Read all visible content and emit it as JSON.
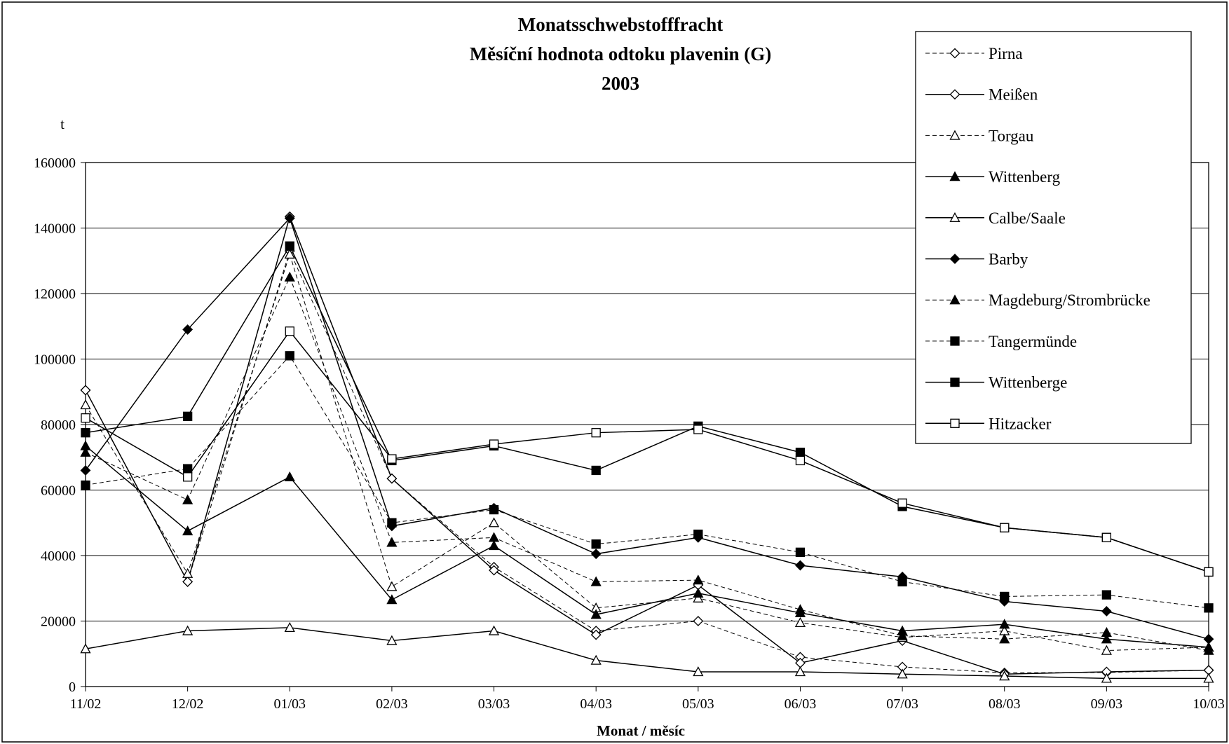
{
  "chart_data": {
    "type": "line",
    "title_lines": [
      "Monatsschwebstofffracht",
      "Měsíční hodnota odtoku plavenin (G)",
      "2003"
    ],
    "ylabel": "t",
    "xlabel": "Monat / měsíc",
    "categories": [
      "11/02",
      "12/02",
      "01/03",
      "02/03",
      "03/03",
      "04/03",
      "05/03",
      "06/03",
      "07/03",
      "08/03",
      "09/03",
      "10/03"
    ],
    "ylim": [
      0,
      160000
    ],
    "yticks": [
      0,
      20000,
      40000,
      60000,
      80000,
      100000,
      120000,
      140000,
      160000
    ],
    "grid": true,
    "legend_position": "top-right",
    "series": [
      {
        "name": "Pirna",
        "dashed": true,
        "marker": "diamond",
        "filled": false,
        "values": [
          90500,
          32000,
          133000,
          63500,
          36500,
          17000,
          20000,
          9000,
          6000,
          4200,
          4300,
          5000
        ]
      },
      {
        "name": "Meißen",
        "dashed": false,
        "marker": "diamond",
        "filled": false,
        "values": [
          90500,
          32000,
          143500,
          63500,
          35500,
          15800,
          31000,
          7200,
          14000,
          3800,
          4500,
          5000
        ]
      },
      {
        "name": "Torgau",
        "dashed": true,
        "marker": "triangle",
        "filled": false,
        "values": [
          86000,
          34500,
          132000,
          30500,
          50000,
          24000,
          27000,
          19500,
          15000,
          17000,
          11000,
          12000
        ]
      },
      {
        "name": "Wittenberg",
        "dashed": false,
        "marker": "triangle",
        "filled": true,
        "values": [
          73500,
          47500,
          64000,
          26500,
          43000,
          22000,
          28500,
          22500,
          17000,
          19000,
          14500,
          12000
        ]
      },
      {
        "name": "Calbe/Saale",
        "dashed": false,
        "marker": "triangle",
        "filled": false,
        "values": [
          11500,
          17000,
          18000,
          14000,
          17000,
          8000,
          4500,
          4500,
          3800,
          3200,
          2500,
          2500
        ]
      },
      {
        "name": "Barby",
        "dashed": false,
        "marker": "diamond",
        "filled": true,
        "values": [
          66000,
          109000,
          143000,
          49000,
          54500,
          40500,
          45500,
          37000,
          33500,
          26000,
          23000,
          14500
        ]
      },
      {
        "name": "Magdeburg/Strombrücke",
        "dashed": true,
        "marker": "triangle",
        "filled": true,
        "values": [
          71500,
          57000,
          125000,
          44000,
          45500,
          32000,
          32500,
          23500,
          15500,
          14500,
          16500,
          11000
        ]
      },
      {
        "name": "Tangermünde",
        "dashed": true,
        "marker": "square",
        "filled": true,
        "values": [
          61500,
          66500,
          101000,
          50000,
          54000,
          43500,
          46500,
          41000,
          32000,
          27500,
          28000,
          24000
        ]
      },
      {
        "name": "Wittenberge",
        "dashed": false,
        "marker": "square",
        "filled": true,
        "values": [
          77500,
          82500,
          134500,
          69000,
          73500,
          66000,
          79500,
          71500,
          55000,
          48500,
          45500,
          35000
        ]
      },
      {
        "name": "Hitzacker",
        "dashed": false,
        "marker": "square",
        "filled": false,
        "values": [
          82000,
          64000,
          108500,
          69500,
          74000,
          77500,
          78500,
          69000,
          56000,
          48500,
          45500,
          35000
        ]
      }
    ]
  }
}
